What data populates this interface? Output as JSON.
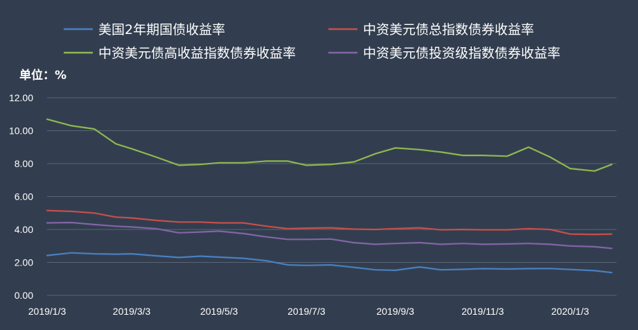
{
  "chart_data": {
    "type": "line",
    "title": "",
    "unit_label": "单位：%",
    "xlabel": "",
    "ylabel": "",
    "ylim": [
      0,
      12
    ],
    "y_ticks": [
      "0.00",
      "2.00",
      "4.00",
      "6.00",
      "8.00",
      "10.00",
      "12.00"
    ],
    "x_ticks": [
      "2019/1/3",
      "2019/3/3",
      "2019/5/3",
      "2019/7/3",
      "2019/9/3",
      "2019/11/3",
      "2020/1/3"
    ],
    "x": [
      "2019/1/3",
      "2019/1/20",
      "2019/2/5",
      "2019/2/20",
      "2019/3/3",
      "2019/3/20",
      "2019/4/5",
      "2019/4/20",
      "2019/5/3",
      "2019/5/20",
      "2019/6/5",
      "2019/6/20",
      "2019/7/3",
      "2019/7/20",
      "2019/8/5",
      "2019/8/20",
      "2019/9/3",
      "2019/9/20",
      "2019/10/5",
      "2019/10/20",
      "2019/11/3",
      "2019/11/20",
      "2019/12/5",
      "2019/12/20",
      "2020/1/3",
      "2020/1/20",
      "2020/2/1"
    ],
    "grid": true,
    "legend_position": "top",
    "series": [
      {
        "name": "美国2年期国债收益率",
        "color": "#4a7fc1",
        "values": [
          2.42,
          2.58,
          2.52,
          2.5,
          2.52,
          2.4,
          2.3,
          2.38,
          2.32,
          2.25,
          2.1,
          1.85,
          1.82,
          1.85,
          1.7,
          1.55,
          1.52,
          1.72,
          1.55,
          1.58,
          1.62,
          1.6,
          1.62,
          1.63,
          1.57,
          1.5,
          1.38
        ]
      },
      {
        "name": "中资美元债总指数债券收益率",
        "color": "#c74f4b",
        "values": [
          5.15,
          5.1,
          5.0,
          4.75,
          4.7,
          4.55,
          4.45,
          4.45,
          4.4,
          4.4,
          4.2,
          4.05,
          4.08,
          4.1,
          4.02,
          4.0,
          4.05,
          4.1,
          3.98,
          4.0,
          3.98,
          3.98,
          4.05,
          4.0,
          3.72,
          3.7,
          3.72
        ]
      },
      {
        "name": "中资美元债高收益指数债券收益率",
        "color": "#8fb84f",
        "values": [
          10.7,
          10.3,
          10.1,
          9.2,
          8.9,
          8.4,
          7.9,
          7.95,
          8.05,
          8.05,
          8.15,
          8.15,
          7.9,
          7.95,
          8.1,
          8.6,
          8.95,
          8.85,
          8.7,
          8.5,
          8.5,
          8.45,
          9.0,
          8.4,
          7.7,
          7.55,
          7.95
        ]
      },
      {
        "name": "中资美元债投资级指数债券收益率",
        "color": "#8364a6",
        "values": [
          4.4,
          4.42,
          4.3,
          4.2,
          4.15,
          4.05,
          3.8,
          3.85,
          3.9,
          3.75,
          3.55,
          3.4,
          3.4,
          3.42,
          3.2,
          3.1,
          3.15,
          3.2,
          3.1,
          3.15,
          3.1,
          3.12,
          3.15,
          3.1,
          3.0,
          2.95,
          2.85
        ]
      }
    ]
  }
}
